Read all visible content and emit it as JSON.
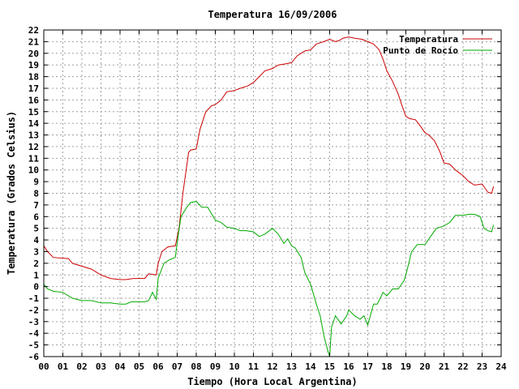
{
  "chart_data": {
    "type": "line",
    "title": "Temperatura 16/09/2006",
    "xlabel": "Tiempo (Hora Local Argentina)",
    "ylabel": "Temperatura (Grados Celsius)",
    "xlim": [
      0,
      24
    ],
    "ylim": [
      -6,
      22
    ],
    "x_tick_labels": [
      "00",
      "01",
      "02",
      "03",
      "04",
      "05",
      "06",
      "07",
      "08",
      "09",
      "10",
      "11",
      "12",
      "13",
      "14",
      "15",
      "16",
      "17",
      "18",
      "19",
      "20",
      "21",
      "22",
      "23",
      "24"
    ],
    "y_ticks": [
      -6,
      -5,
      -4,
      -3,
      -2,
      -1,
      0,
      1,
      2,
      3,
      4,
      5,
      6,
      7,
      8,
      9,
      10,
      11,
      12,
      13,
      14,
      15,
      16,
      17,
      18,
      19,
      20,
      21,
      22
    ],
    "grid": true,
    "legend_position": "top-right",
    "series": [
      {
        "name": "Temperatura",
        "color": "#cc0000",
        "x": [
          0,
          0.2,
          0.5,
          1.3,
          1.5,
          2.5,
          3.0,
          3.5,
          4.0,
          4.3,
          4.7,
          5.0,
          5.3,
          5.5,
          5.9,
          6.0,
          6.2,
          6.5,
          6.9,
          7.1,
          7.3,
          7.6,
          7.7,
          8.0,
          8.2,
          8.5,
          8.8,
          9.0,
          9.3,
          9.6,
          10.0,
          10.3,
          10.7,
          11.0,
          11.3,
          11.6,
          12.0,
          12.3,
          12.7,
          13.0,
          13.3,
          13.5,
          13.7,
          14.0,
          14.3,
          14.7,
          15.0,
          15.3,
          15.5,
          15.7,
          16.0,
          16.3,
          16.7,
          17.0,
          17.3,
          17.6,
          17.8,
          18.0,
          18.3,
          18.6,
          18.8,
          19.0,
          19.2,
          19.5,
          19.7,
          20.0,
          20.2,
          20.5,
          20.8,
          21.0,
          21.3,
          21.6,
          22.0,
          22.3,
          22.6,
          23.0,
          23.3,
          23.5,
          23.6
        ],
        "y": [
          3.5,
          3.0,
          2.5,
          2.4,
          2.0,
          1.5,
          1.0,
          0.7,
          0.6,
          0.6,
          0.7,
          0.7,
          0.7,
          1.1,
          1.0,
          2.0,
          3.0,
          3.4,
          3.5,
          5.0,
          8.0,
          11.5,
          11.7,
          11.8,
          13.5,
          15.0,
          15.5,
          15.6,
          16.0,
          16.7,
          16.8,
          17.0,
          17.2,
          17.5,
          18.0,
          18.5,
          18.7,
          19.0,
          19.1,
          19.2,
          19.8,
          20.0,
          20.2,
          20.3,
          20.8,
          21.0,
          21.2,
          21.0,
          21.1,
          21.3,
          21.4,
          21.3,
          21.2,
          21.0,
          20.8,
          20.3,
          19.5,
          18.5,
          17.6,
          16.5,
          15.5,
          14.6,
          14.4,
          14.3,
          13.9,
          13.2,
          13.0,
          12.5,
          11.5,
          10.6,
          10.5,
          10.0,
          9.5,
          9.0,
          8.7,
          8.8,
          8.1,
          8.0,
          8.6
        ]
      },
      {
        "name": "Punto de Rocío",
        "color": "#00aa00",
        "x": [
          0,
          0.2,
          0.5,
          1.0,
          1.5,
          2.0,
          2.5,
          3.0,
          3.5,
          4.0,
          4.3,
          4.6,
          5.0,
          5.3,
          5.5,
          5.7,
          5.9,
          6.0,
          6.3,
          6.6,
          6.9,
          7.0,
          7.2,
          7.5,
          7.7,
          8.0,
          8.3,
          8.6,
          9.0,
          9.3,
          9.6,
          10.0,
          10.3,
          10.6,
          11.0,
          11.3,
          11.6,
          12.0,
          12.3,
          12.6,
          12.8,
          13.0,
          13.2,
          13.5,
          13.7,
          14.0,
          14.3,
          14.5,
          14.7,
          14.9,
          15.0,
          15.1,
          15.3,
          15.6,
          15.9,
          16.0,
          16.3,
          16.6,
          16.8,
          17.0,
          17.3,
          17.5,
          17.8,
          18.0,
          18.3,
          18.6,
          18.9,
          19.0,
          19.3,
          19.6,
          20.0,
          20.3,
          20.6,
          21.0,
          21.3,
          21.6,
          22.0,
          22.3,
          22.6,
          22.9,
          23.1,
          23.3,
          23.5,
          23.6
        ],
        "y": [
          0.2,
          -0.2,
          -0.4,
          -0.5,
          -1.0,
          -1.2,
          -1.2,
          -1.4,
          -1.4,
          -1.5,
          -1.5,
          -1.3,
          -1.3,
          -1.3,
          -1.2,
          -0.5,
          -1.1,
          0.7,
          2.0,
          2.3,
          2.5,
          3.8,
          6.0,
          6.8,
          7.2,
          7.3,
          6.8,
          6.8,
          5.7,
          5.5,
          5.1,
          5.0,
          4.8,
          4.8,
          4.7,
          4.3,
          4.5,
          5.0,
          4.5,
          3.7,
          4.1,
          3.5,
          3.3,
          2.5,
          1.2,
          0.2,
          -1.5,
          -2.5,
          -4.2,
          -5.5,
          -6.0,
          -3.5,
          -2.5,
          -3.2,
          -2.5,
          -2.0,
          -2.5,
          -2.8,
          -2.5,
          -3.3,
          -1.5,
          -1.5,
          -0.5,
          -0.8,
          -0.2,
          -0.2,
          0.5,
          1.0,
          3.0,
          3.6,
          3.6,
          4.3,
          5.0,
          5.2,
          5.5,
          6.1,
          6.1,
          6.2,
          6.2,
          6.0,
          5.0,
          4.8,
          4.7,
          5.3
        ]
      }
    ]
  }
}
